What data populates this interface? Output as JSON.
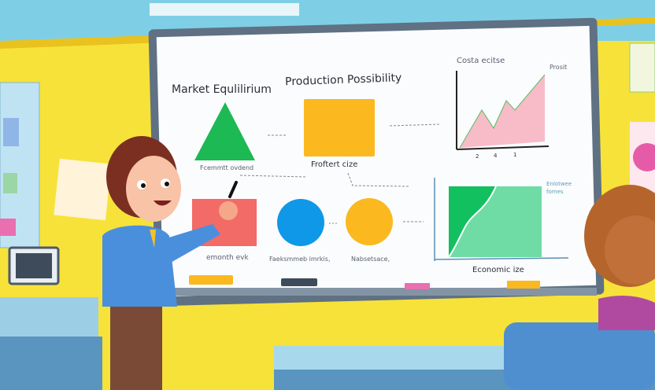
{
  "colors": {
    "wall": "#f7e23a",
    "board": "#fbfcfe",
    "board_frame": "#5f7182",
    "green": "#1db954",
    "yellow": "#fbb81f",
    "red": "#f26b66",
    "blue": "#0f98e8",
    "pink": "#f7bcc8",
    "mint": "#6fdca6",
    "teacher_shirt": "#4a8fdc"
  },
  "board": {
    "title_left": "Market Equlilirium",
    "title_center": "Production Possibility",
    "chart_top_title": "Costa ecitse",
    "chart_top_peak_label": "Prosit",
    "chart_top_ticks": [
      "2",
      "4",
      "1"
    ],
    "triangle_caption": "Fcemmtt ovdend",
    "square_caption": "Froftert cize",
    "red_caption": "emonth evk",
    "blue_caption": "Faeksmmeb imrkis,",
    "yellow_caption": "Nabsetsace,",
    "chart_bottom_legend": [
      "Enlotwee",
      "fomes"
    ],
    "chart_bottom_xlabel": "Economic ize"
  },
  "icons": [
    "marker-pen-icon"
  ]
}
